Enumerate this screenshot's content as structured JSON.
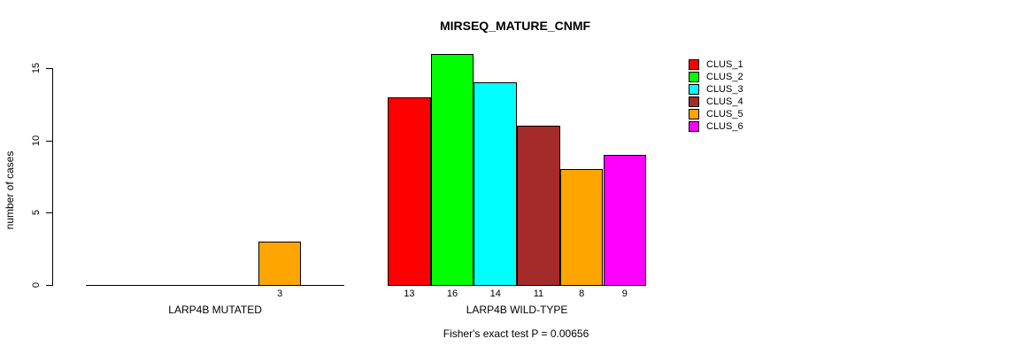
{
  "chart_data": {
    "type": "bar",
    "title": "MIRSEQ_MATURE_CNMF",
    "ylabel": "number of cases",
    "xlabel": "",
    "footnote": "Fisher's exact test P = 0.00656",
    "ylim": [
      0,
      15
    ],
    "yticks": [
      0,
      5,
      10,
      15
    ],
    "grid": false,
    "legend_position": "top-right",
    "axis_color": "#000000",
    "background_color": "#ffffff",
    "clusters": [
      {
        "name": "CLUS_1",
        "color": "#FF0000"
      },
      {
        "name": "CLUS_2",
        "color": "#00FF00"
      },
      {
        "name": "CLUS_3",
        "color": "#00FFFF"
      },
      {
        "name": "CLUS_4",
        "color": "#A52A2A"
      },
      {
        "name": "CLUS_5",
        "color": "#FFA500"
      },
      {
        "name": "CLUS_6",
        "color": "#FF00FF"
      }
    ],
    "groups": [
      {
        "label": "LARP4B MUTATED",
        "values": [
          0,
          0,
          0,
          0,
          3,
          0
        ]
      },
      {
        "label": "LARP4B WILD-TYPE",
        "values": [
          13,
          16,
          14,
          11,
          8,
          9
        ]
      }
    ]
  }
}
